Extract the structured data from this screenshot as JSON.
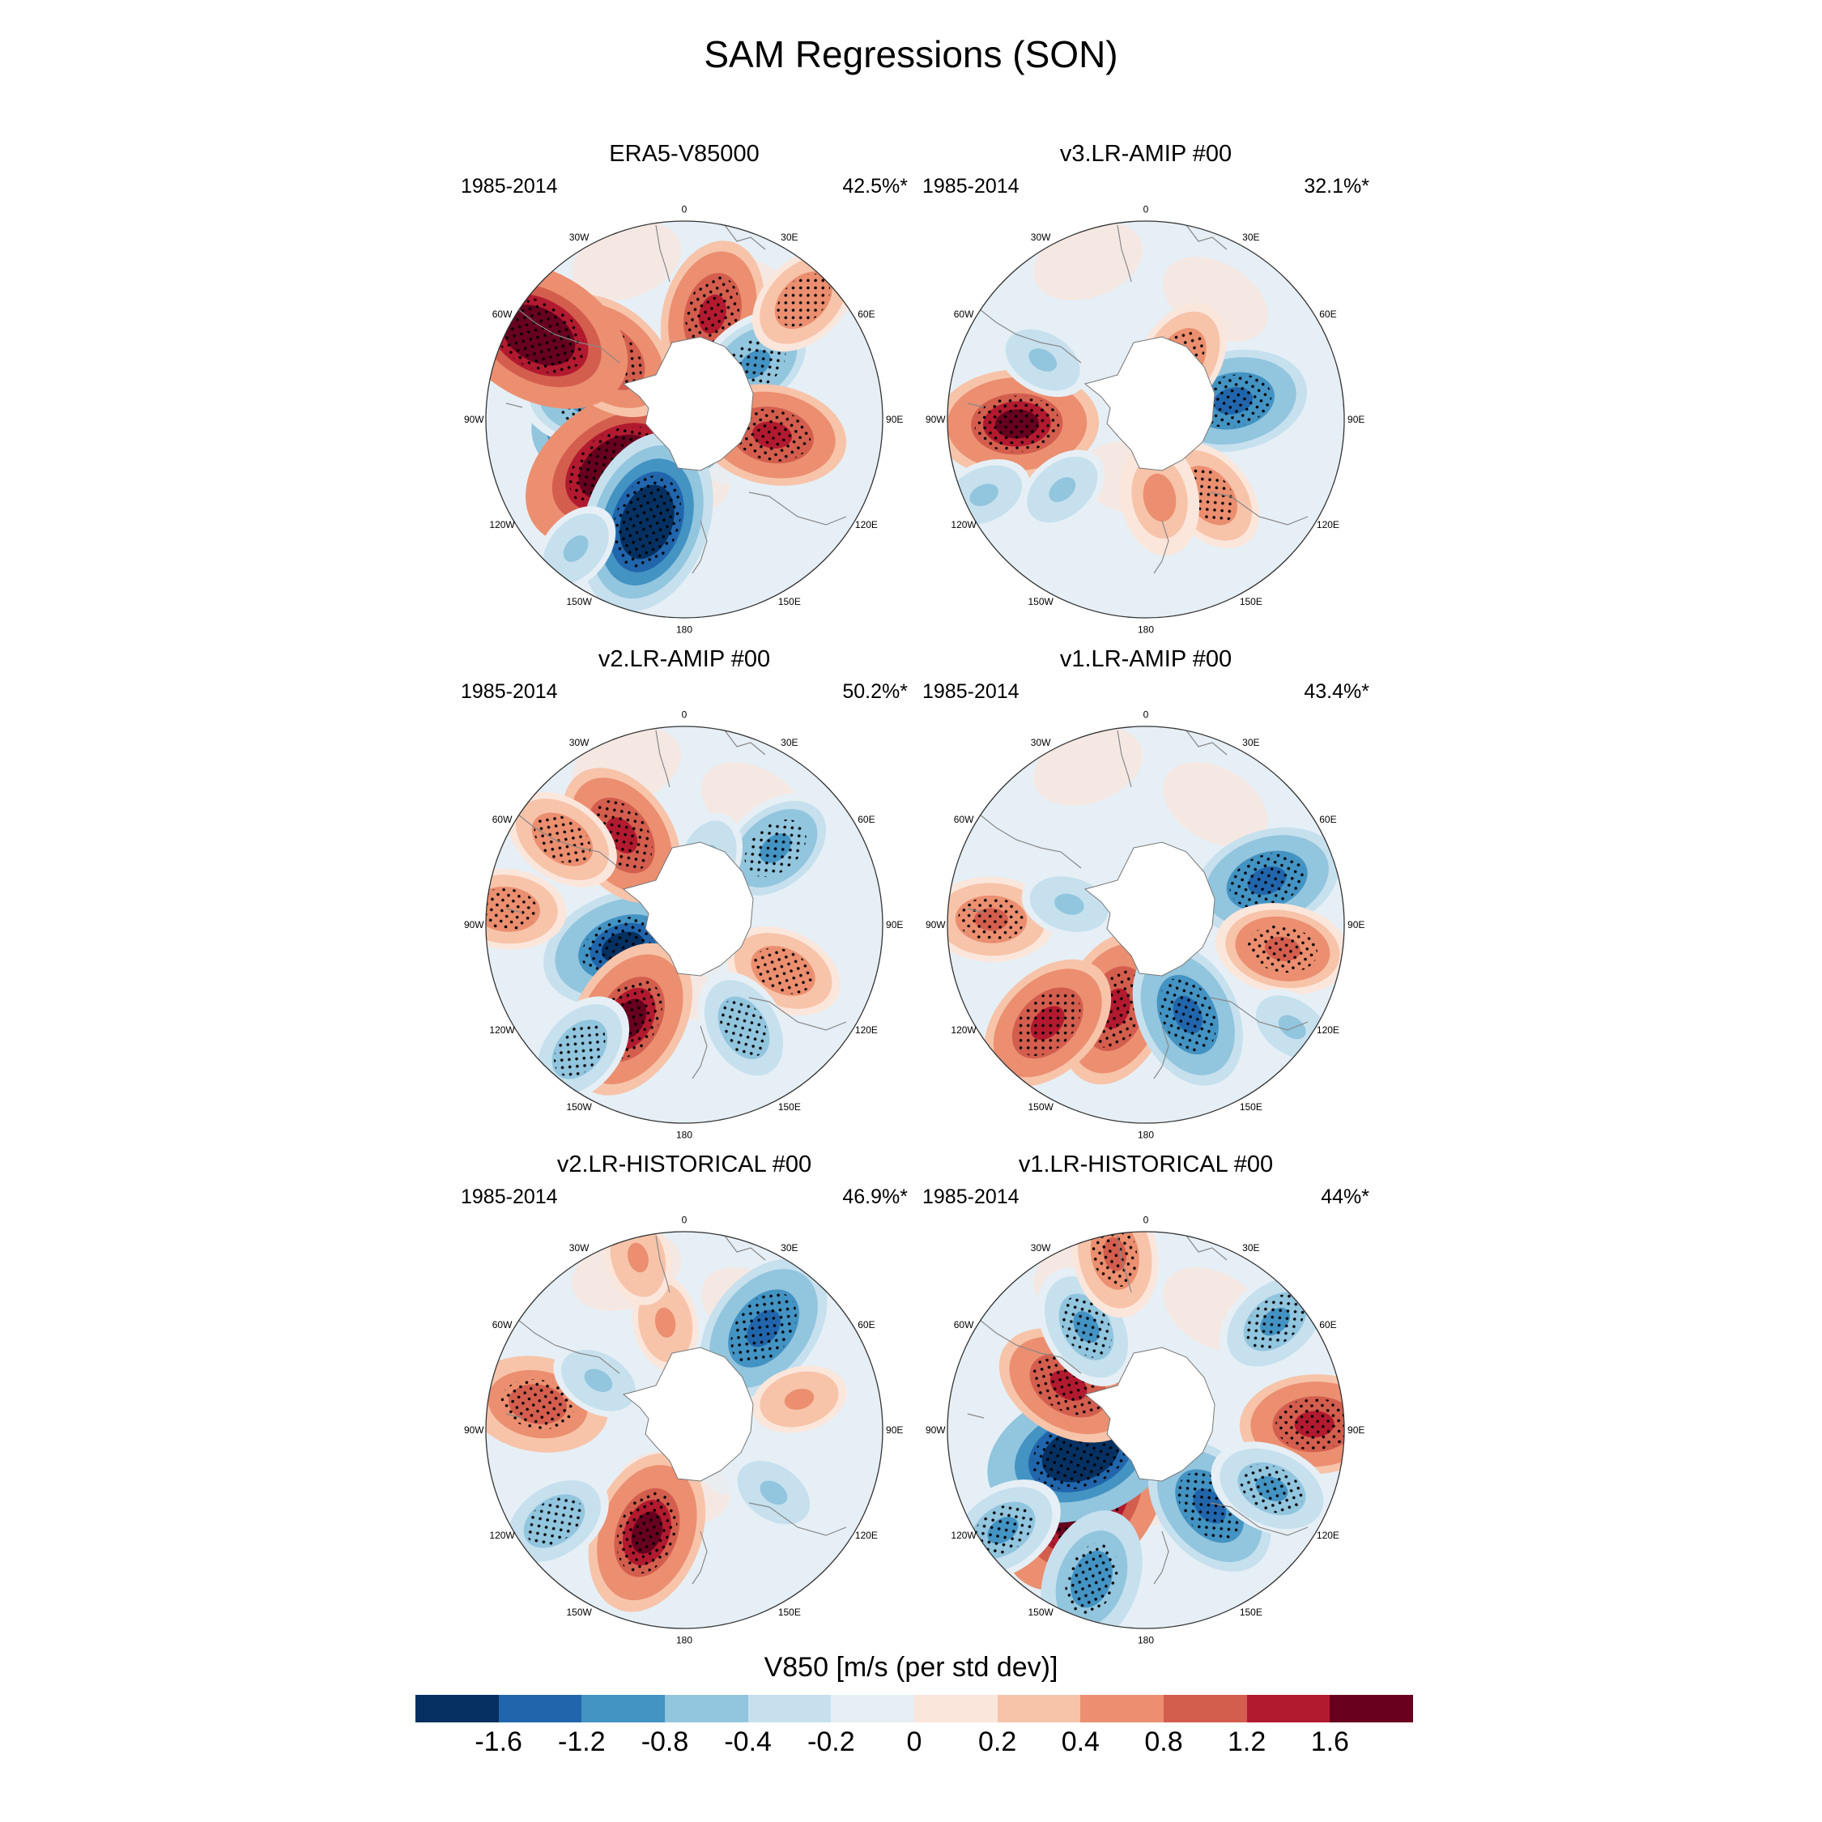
{
  "title": "SAM Regressions (SON)",
  "colorbar": {
    "title": "V850 [m/s (per std dev)]",
    "colors": [
      "#053061",
      "#2166ac",
      "#4393c3",
      "#92c5de",
      "#c6e0ee",
      "#e6eff5",
      "#fbe6dc",
      "#f7c4aa",
      "#eb8f70",
      "#d45e4e",
      "#b21a2f",
      "#67001f"
    ],
    "tick_labels": [
      "-1.6",
      "-1.2",
      "-0.8",
      "-0.4",
      "-0.2",
      "0",
      "0.2",
      "0.4",
      "0.8",
      "1.2",
      "1.6"
    ]
  },
  "lon_labels": [
    "0",
    "30E",
    "60E",
    "90E",
    "120E",
    "150E",
    "180",
    "150W",
    "120W",
    "90W",
    "60W",
    "30W"
  ],
  "lon_angles": [
    0,
    30,
    60,
    90,
    120,
    150,
    180,
    210,
    240,
    270,
    300,
    330
  ],
  "panels": [
    {
      "title": "ERA5-V85000",
      "years": "1985-2014",
      "pct": "42.5%*",
      "blobs": [
        [
          -95,
          0.25,
          1.6,
          "n"
        ],
        [
          -80,
          0.5,
          0.6,
          "n"
        ],
        [
          -125,
          0.42,
          1.5,
          "p"
        ],
        [
          -160,
          0.55,
          1.3,
          "n"
        ],
        [
          15,
          0.55,
          0.8,
          "p"
        ],
        [
          -50,
          0.5,
          0.8,
          "p"
        ],
        [
          52,
          0.45,
          0.6,
          "n"
        ],
        [
          100,
          0.45,
          0.8,
          "p"
        ],
        [
          -60,
          0.85,
          1.4,
          "p"
        ],
        [
          45,
          0.85,
          0.4,
          "p"
        ],
        [
          -140,
          0.85,
          0.3,
          "n"
        ]
      ]
    },
    {
      "title": "v3.LR-AMIP  #00",
      "years": "1985-2014",
      "pct": "32.1%*",
      "blobs": [
        [
          -92,
          0.65,
          1.0,
          "p"
        ],
        [
          78,
          0.45,
          0.8,
          "n"
        ],
        [
          140,
          0.5,
          0.4,
          "p"
        ],
        [
          30,
          0.35,
          0.4,
          "p"
        ],
        [
          -130,
          0.55,
          0.3,
          "n"
        ],
        [
          -115,
          0.9,
          0.3,
          "n"
        ],
        [
          -60,
          0.6,
          0.3,
          "n"
        ],
        [
          170,
          0.4,
          0.35,
          "p"
        ]
      ]
    },
    {
      "title": "v2.LR-AMIP  #00",
      "years": "1985-2014",
      "pct": "50.2%*",
      "blobs": [
        [
          -110,
          0.33,
          1.0,
          "n"
        ],
        [
          -150,
          0.55,
          1.0,
          "p"
        ],
        [
          -35,
          0.55,
          0.8,
          "p"
        ],
        [
          50,
          0.6,
          0.6,
          "n"
        ],
        [
          115,
          0.55,
          0.4,
          "p"
        ],
        [
          150,
          0.6,
          0.4,
          "n"
        ],
        [
          -140,
          0.82,
          0.4,
          "n"
        ],
        [
          -85,
          0.9,
          0.4,
          "p"
        ],
        [
          -55,
          0.75,
          0.4,
          "p"
        ],
        [
          20,
          0.35,
          0.3,
          "n"
        ]
      ]
    },
    {
      "title": "v1.LR-AMIP  #00",
      "years": "1985-2014",
      "pct": "43.4%*",
      "blobs": [
        [
          -160,
          0.45,
          0.9,
          "p"
        ],
        [
          -135,
          0.7,
          0.8,
          "p"
        ],
        [
          155,
          0.5,
          0.8,
          "n"
        ],
        [
          70,
          0.65,
          0.8,
          "n"
        ],
        [
          100,
          0.7,
          0.6,
          "p"
        ],
        [
          -88,
          0.78,
          0.5,
          "p"
        ],
        [
          -75,
          0.4,
          0.3,
          "n"
        ],
        [
          125,
          0.9,
          0.3,
          "n"
        ]
      ]
    },
    {
      "title": "v2.LR-HISTORICAL  #00",
      "years": "1985-2014",
      "pct": "46.9%*",
      "blobs": [
        [
          -160,
          0.55,
          1.0,
          "p"
        ],
        [
          38,
          0.65,
          0.9,
          "n"
        ],
        [
          -80,
          0.75,
          0.7,
          "p"
        ],
        [
          -125,
          0.8,
          0.4,
          "n"
        ],
        [
          -10,
          0.55,
          0.3,
          "p"
        ],
        [
          -60,
          0.5,
          0.3,
          "n"
        ],
        [
          125,
          0.55,
          0.3,
          "n"
        ],
        [
          75,
          0.6,
          0.3,
          "p"
        ],
        [
          -15,
          0.9,
          0.3,
          "p"
        ]
      ]
    },
    {
      "title": "v1.LR-HISTORICAL  #00",
      "years": "1985-2014",
      "pct": "44%*",
      "blobs": [
        [
          -140,
          0.48,
          1.5,
          "p"
        ],
        [
          -110,
          0.35,
          1.4,
          "n"
        ],
        [
          -60,
          0.45,
          0.8,
          "p"
        ],
        [
          140,
          0.5,
          0.8,
          "n"
        ],
        [
          -160,
          0.8,
          0.7,
          "n"
        ],
        [
          88,
          0.85,
          0.8,
          "p"
        ],
        [
          115,
          0.7,
          0.5,
          "n"
        ],
        [
          50,
          0.85,
          0.5,
          "n"
        ],
        [
          -30,
          0.6,
          0.5,
          "n"
        ],
        [
          -10,
          0.9,
          0.5,
          "p"
        ],
        [
          -125,
          0.88,
          0.5,
          "n"
        ]
      ]
    }
  ]
}
